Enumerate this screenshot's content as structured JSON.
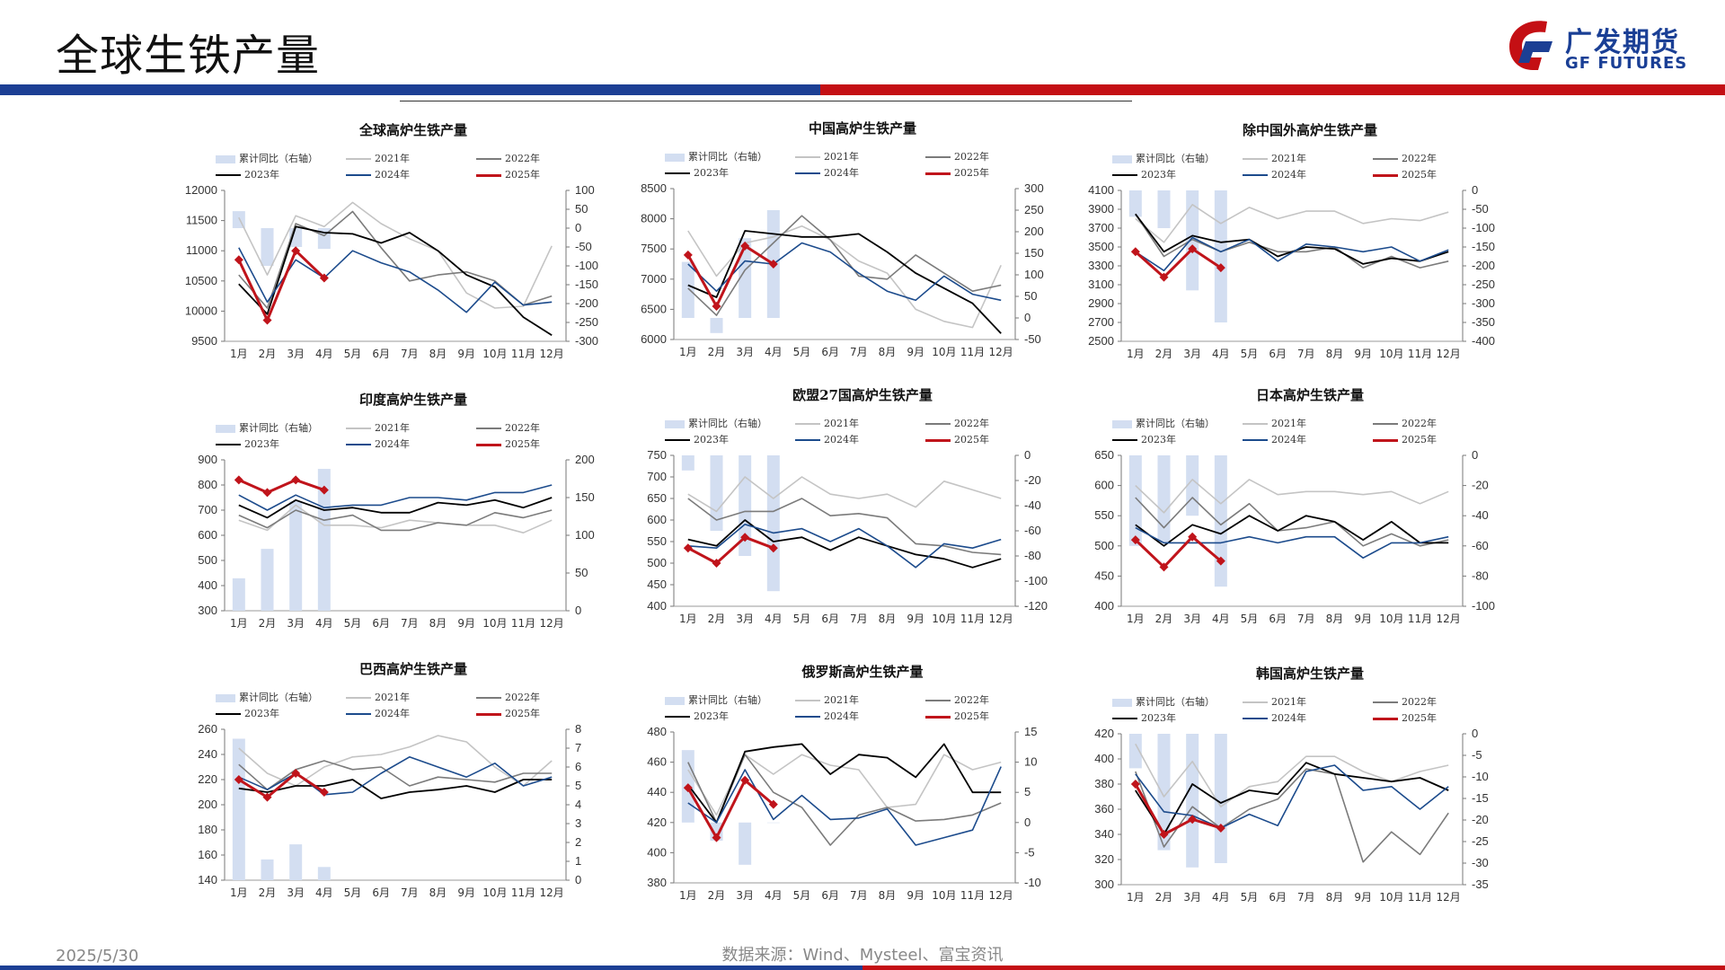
{
  "page": {
    "title": "全球生铁产量",
    "logo_cn": "广发期货",
    "logo_en": "GF FUTURES",
    "date": "2025/5/30",
    "source": "数据来源：Wind、Mysteel、富宝资讯"
  },
  "months": [
    "1月",
    "2月",
    "3月",
    "4月",
    "5月",
    "6月",
    "7月",
    "8月",
    "9月",
    "10月",
    "11月",
    "12月"
  ],
  "legend_labels": {
    "bar": "累计同比（右轴）",
    "y2021": "2021年",
    "y2022": "2022年",
    "y2023": "2023年",
    "y2024": "2024年",
    "y2025": "2025年"
  },
  "colors": {
    "bar": "#d3def1",
    "y2021": "#c4c4c4",
    "y2022": "#7b7b7b",
    "y2023": "#000000",
    "y2024": "#1c4b8c",
    "y2025": "#c0141b"
  },
  "chart_data": [
    {
      "type": "line",
      "title": "全球高炉生铁产量",
      "ylim": [
        9500,
        12000
      ],
      "yticks": [
        9500,
        10000,
        10500,
        11000,
        11500,
        12000
      ],
      "y2lim": [
        -300,
        100
      ],
      "y2ticks": [
        -300,
        -250,
        -200,
        -150,
        -100,
        -50,
        0,
        50,
        100
      ],
      "bars": [
        45,
        -100,
        -50,
        -55
      ],
      "series": {
        "y2021": [
          11550,
          10600,
          11580,
          11400,
          11800,
          11450,
          11200,
          11000,
          10300,
          10050,
          10080,
          11080
        ],
        "y2022": [
          10600,
          10050,
          11450,
          11250,
          11650,
          11050,
          10500,
          10600,
          10650,
          10500,
          10100,
          10250
        ],
        "y2023": [
          10450,
          9950,
          11400,
          11300,
          11280,
          11130,
          11300,
          11000,
          10600,
          10400,
          9900,
          9600
        ],
        "y2024": [
          11050,
          10150,
          10850,
          10550,
          11000,
          10800,
          10650,
          10350,
          9980,
          10480,
          10100,
          10150
        ],
        "y2025": [
          10850,
          9850,
          11000,
          10550
        ]
      }
    },
    {
      "type": "line",
      "title": "中国高炉生铁产量",
      "ylim": [
        6000,
        8500
      ],
      "yticks": [
        6000,
        6500,
        7000,
        7500,
        8000,
        8500
      ],
      "y2lim": [
        -50,
        300
      ],
      "y2ticks": [
        -50,
        0,
        50,
        100,
        150,
        200,
        250,
        300
      ],
      "bars": [
        130,
        -35,
        185,
        250
      ],
      "series": {
        "y2021": [
          7800,
          7050,
          7600,
          7700,
          7880,
          7650,
          7300,
          7100,
          6500,
          6300,
          6200,
          7230
        ],
        "y2022": [
          6850,
          6400,
          7150,
          7600,
          8050,
          7650,
          7050,
          7000,
          7400,
          7100,
          6800,
          6900
        ],
        "y2023": [
          6900,
          6700,
          7800,
          7750,
          7700,
          7700,
          7750,
          7450,
          7100,
          6850,
          6600,
          6100
        ],
        "y2024": [
          7250,
          6800,
          7300,
          7250,
          7600,
          7450,
          7100,
          6800,
          6650,
          7050,
          6750,
          6650
        ],
        "y2025": [
          7400,
          6550,
          7550,
          7250
        ]
      }
    },
    {
      "type": "line",
      "title": "除中国外高炉生铁产量",
      "ylim": [
        2500,
        4100
      ],
      "yticks": [
        2500,
        2700,
        2900,
        3100,
        3300,
        3500,
        3700,
        3900,
        4100
      ],
      "y2lim": [
        -400,
        0
      ],
      "y2ticks": [
        -400,
        -350,
        -300,
        -250,
        -200,
        -150,
        -100,
        -50,
        0
      ],
      "bars": [
        -70,
        -100,
        -265,
        -350
      ],
      "series": {
        "y2021": [
          3800,
          3550,
          3950,
          3750,
          3920,
          3800,
          3880,
          3880,
          3750,
          3800,
          3780,
          3870
        ],
        "y2022": [
          3850,
          3400,
          3580,
          3450,
          3550,
          3450,
          3450,
          3500,
          3280,
          3400,
          3280,
          3350
        ],
        "y2023": [
          3850,
          3450,
          3620,
          3550,
          3580,
          3400,
          3500,
          3480,
          3320,
          3380,
          3350,
          3450
        ],
        "y2024": [
          3450,
          3250,
          3600,
          3450,
          3580,
          3350,
          3530,
          3500,
          3450,
          3500,
          3350,
          3470
        ],
        "y2025": [
          3450,
          3180,
          3480,
          3280
        ]
      }
    },
    {
      "type": "line",
      "title": "印度高炉生铁产量",
      "ylim": [
        300,
        900
      ],
      "yticks": [
        300,
        400,
        500,
        600,
        700,
        800,
        900
      ],
      "y2lim": [
        0,
        200
      ],
      "y2ticks": [
        0,
        50,
        100,
        150,
        200
      ],
      "bars": [
        43,
        82,
        145,
        188
      ],
      "series": {
        "y2021": [
          660,
          620,
          720,
          640,
          640,
          630,
          660,
          650,
          640,
          640,
          610,
          660
        ],
        "y2022": [
          680,
          630,
          700,
          660,
          680,
          620,
          620,
          650,
          640,
          690,
          670,
          700
        ],
        "y2023": [
          720,
          670,
          740,
          700,
          710,
          690,
          690,
          730,
          720,
          740,
          710,
          750
        ],
        "y2024": [
          760,
          700,
          760,
          710,
          720,
          720,
          750,
          750,
          740,
          770,
          770,
          800
        ],
        "y2025": [
          820,
          770,
          820,
          780
        ]
      }
    },
    {
      "type": "line",
      "title": "欧盟27国高炉生铁产量",
      "ylim": [
        400,
        750
      ],
      "yticks": [
        400,
        450,
        500,
        550,
        600,
        650,
        700,
        750
      ],
      "y2lim": [
        -120,
        0
      ],
      "y2ticks": [
        -120,
        -100,
        -80,
        -60,
        -40,
        -20,
        0
      ],
      "bars": [
        -12,
        -60,
        -80,
        -108
      ],
      "series": {
        "y2021": [
          660,
          620,
          700,
          650,
          700,
          660,
          650,
          660,
          630,
          690,
          670,
          650
        ],
        "y2022": [
          650,
          600,
          620,
          620,
          650,
          610,
          615,
          605,
          545,
          540,
          525,
          520
        ],
        "y2023": [
          555,
          540,
          600,
          550,
          560,
          530,
          560,
          540,
          520,
          510,
          490,
          510
        ],
        "y2024": [
          540,
          535,
          590,
          570,
          580,
          550,
          580,
          540,
          490,
          545,
          535,
          555
        ],
        "y2025": [
          535,
          500,
          560,
          535
        ]
      }
    },
    {
      "type": "line",
      "title": "日本高炉生铁产量",
      "ylim": [
        400,
        650
      ],
      "yticks": [
        400,
        450,
        500,
        550,
        600,
        650
      ],
      "y2lim": [
        -100,
        0
      ],
      "y2ticks": [
        -100,
        -80,
        -60,
        -40,
        -20,
        0
      ],
      "bars": [
        -60,
        -58,
        -40,
        -87
      ],
      "series": {
        "y2021": [
          600,
          555,
          610,
          570,
          610,
          585,
          590,
          590,
          585,
          590,
          570,
          590
        ],
        "y2022": [
          580,
          530,
          580,
          535,
          570,
          525,
          530,
          540,
          500,
          520,
          500,
          510
        ],
        "y2023": [
          535,
          500,
          535,
          520,
          550,
          525,
          550,
          540,
          510,
          540,
          505,
          505
        ],
        "y2024": [
          530,
          505,
          505,
          505,
          515,
          505,
          515,
          515,
          480,
          505,
          505,
          515
        ],
        "y2025": [
          510,
          465,
          515,
          475
        ]
      }
    },
    {
      "type": "line",
      "title": "巴西高炉生铁产量",
      "ylim": [
        140,
        260
      ],
      "yticks": [
        140,
        160,
        180,
        200,
        220,
        240,
        260
      ],
      "y2lim": [
        0,
        8
      ],
      "y2ticks": [
        0,
        1,
        2,
        3,
        4,
        5,
        6,
        7,
        8
      ],
      "bars": [
        7.5,
        1.1,
        1.9,
        0.7
      ],
      "series": {
        "y2021": [
          245,
          225,
          215,
          230,
          238,
          240,
          246,
          255,
          250,
          230,
          215,
          235
        ],
        "y2022": [
          232,
          212,
          228,
          235,
          228,
          230,
          215,
          222,
          220,
          218,
          225,
          225
        ],
        "y2023": [
          213,
          210,
          215,
          215,
          220,
          205,
          210,
          212,
          215,
          210,
          220,
          220
        ],
        "y2024": [
          222,
          212,
          225,
          208,
          210,
          225,
          238,
          230,
          222,
          233,
          215,
          222
        ],
        "y2025": [
          220,
          206,
          225,
          210
        ]
      }
    },
    {
      "type": "line",
      "title": "俄罗斯高炉生铁产量",
      "ylim": [
        380,
        480
      ],
      "yticks": [
        380,
        400,
        420,
        440,
        460,
        480
      ],
      "y2lim": [
        -10,
        15
      ],
      "y2ticks": [
        -10,
        -5,
        0,
        5,
        10,
        15
      ],
      "bars": [
        12,
        -3,
        -7,
        0
      ],
      "series": {
        "y2021": [
          455,
          425,
          465,
          452,
          465,
          458,
          455,
          430,
          432,
          465,
          455,
          460
        ],
        "y2022": [
          460,
          420,
          465,
          440,
          430,
          405,
          425,
          430,
          421,
          422,
          425,
          433
        ],
        "y2023": [
          445,
          420,
          467,
          470,
          472,
          452,
          465,
          463,
          450,
          472,
          440,
          440
        ],
        "y2024": [
          433,
          420,
          455,
          422,
          438,
          422,
          423,
          429,
          405,
          410,
          415,
          457
        ],
        "y2025": [
          443,
          410,
          448,
          432
        ]
      }
    },
    {
      "type": "line",
      "title": "韩国高炉生铁产量",
      "ylim": [
        300,
        420
      ],
      "yticks": [
        300,
        320,
        340,
        360,
        380,
        400,
        420
      ],
      "y2lim": [
        -35,
        0
      ],
      "y2ticks": [
        -35,
        -30,
        -25,
        -20,
        -15,
        -10,
        -5,
        0
      ],
      "bars": [
        -8,
        -27,
        -31,
        -30
      ],
      "series": {
        "y2021": [
          412,
          370,
          398,
          362,
          378,
          382,
          402,
          402,
          390,
          382,
          390,
          395
        ],
        "y2022": [
          390,
          330,
          362,
          345,
          360,
          368,
          392,
          388,
          318,
          342,
          324,
          357
        ],
        "y2023": [
          375,
          340,
          380,
          365,
          375,
          372,
          397,
          388,
          385,
          382,
          385,
          375
        ],
        "y2024": [
          388,
          358,
          355,
          345,
          356,
          347,
          390,
          395,
          375,
          378,
          360,
          378
        ],
        "y2025": [
          380,
          340,
          352,
          345
        ]
      }
    }
  ]
}
